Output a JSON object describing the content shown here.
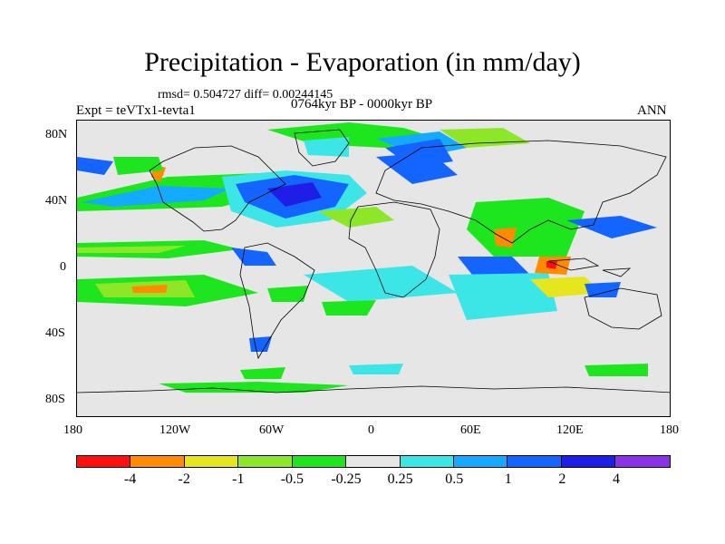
{
  "title": "Precipitation - Evaporation (in mm/day)",
  "stats": "rmsd= 0.504727 diff= 0.00244145",
  "period": "0764kyr BP - 0000kyr BP",
  "expt": "Expt = teVTx1-tevta1",
  "season": "ANN",
  "lat_labels": [
    "80N",
    "40N",
    "0",
    "40S",
    "80S"
  ],
  "lon_labels": [
    "180",
    "120W",
    "60W",
    "0",
    "60E",
    "120E",
    "180"
  ],
  "colorbar": {
    "colors": [
      "#ff1010",
      "#ff8c00",
      "#e6e61e",
      "#8ee628",
      "#1ee61e",
      "#e6e6e6",
      "#3ce6e6",
      "#14aaff",
      "#1464ff",
      "#1e1ee6",
      "#8c32e6"
    ],
    "labels": [
      "-4",
      "-2",
      "-1",
      "-0.5",
      "-0.25",
      "0.25",
      "0.5",
      "1",
      "2",
      "4"
    ]
  },
  "chart_data": {
    "type": "heatmap",
    "title": "Precipitation - Evaporation (in mm/day)",
    "subtitle": "0764kyr BP - 0000kyr BP",
    "xlim": [
      -180,
      180
    ],
    "ylim": [
      -90,
      90
    ],
    "x_ticks": [
      -180,
      -120,
      -60,
      0,
      60,
      120,
      180
    ],
    "y_ticks": [
      80,
      40,
      0,
      -40,
      -80
    ],
    "levels": [
      -4,
      -2,
      -1,
      -0.5,
      -0.25,
      0.25,
      0.5,
      1,
      2,
      4
    ],
    "rmsd": 0.504727,
    "diff": 0.00244145
  }
}
